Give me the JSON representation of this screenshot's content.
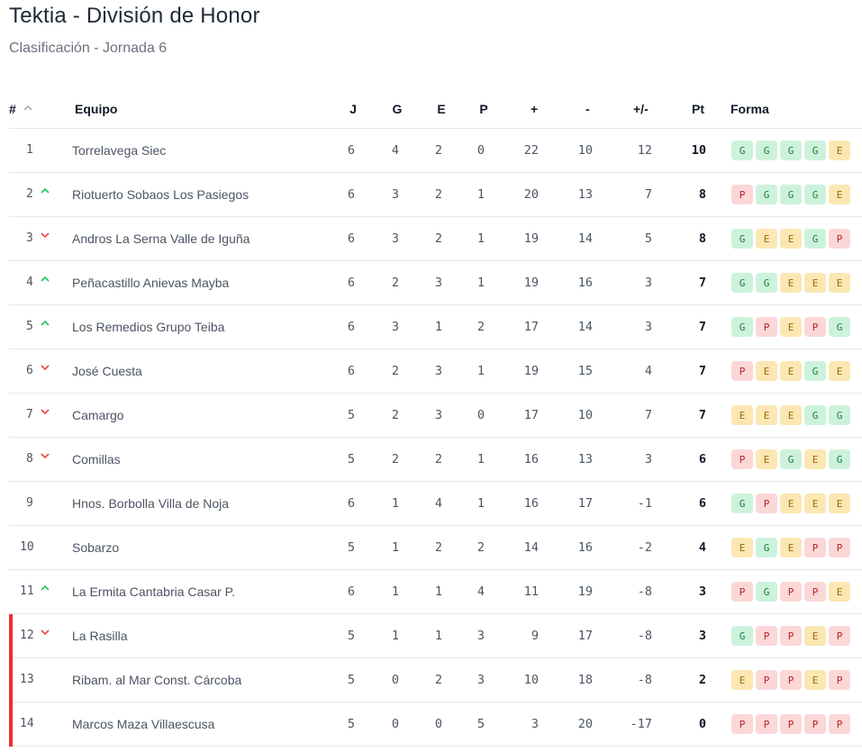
{
  "header": {
    "title": "Tektia - División de Honor",
    "subtitle": "Clasificación - Jornada 6"
  },
  "columns": {
    "pos": "#",
    "team": "Equipo",
    "j": "J",
    "g": "G",
    "e": "E",
    "p": "P",
    "plus": "+",
    "minus": "-",
    "diff": "+/-",
    "pt": "Pt",
    "form": "Forma"
  },
  "colors": {
    "win": "#cdf2dc",
    "draw": "#fbe7b3",
    "loss": "#fbd7d7",
    "up_arrow": "#22c55e",
    "down_arrow": "#ef4444",
    "relegation_marker": "#ef2b2d"
  },
  "rows": [
    {
      "pos": "1",
      "trend": "none",
      "team": "Torrelavega Siec",
      "j": "6",
      "g": "4",
      "e": "2",
      "p": "0",
      "plus": "22",
      "minus": "10",
      "diff": "12",
      "pt": "10",
      "form": [
        "G",
        "G",
        "G",
        "G",
        "E"
      ],
      "relegation": false
    },
    {
      "pos": "2",
      "trend": "up",
      "team": "Riotuerto Sobaos Los Pasiegos",
      "j": "6",
      "g": "3",
      "e": "2",
      "p": "1",
      "plus": "20",
      "minus": "13",
      "diff": "7",
      "pt": "8",
      "form": [
        "P",
        "G",
        "G",
        "G",
        "E"
      ],
      "relegation": false
    },
    {
      "pos": "3",
      "trend": "down",
      "team": "Andros La Serna Valle de Iguña",
      "j": "6",
      "g": "3",
      "e": "2",
      "p": "1",
      "plus": "19",
      "minus": "14",
      "diff": "5",
      "pt": "8",
      "form": [
        "G",
        "E",
        "E",
        "G",
        "P"
      ],
      "relegation": false
    },
    {
      "pos": "4",
      "trend": "up",
      "team": "Peñacastillo Anievas Mayba",
      "j": "6",
      "g": "2",
      "e": "3",
      "p": "1",
      "plus": "19",
      "minus": "16",
      "diff": "3",
      "pt": "7",
      "form": [
        "G",
        "G",
        "E",
        "E",
        "E"
      ],
      "relegation": false
    },
    {
      "pos": "5",
      "trend": "up",
      "team": "Los Remedios Grupo Teiba",
      "j": "6",
      "g": "3",
      "e": "1",
      "p": "2",
      "plus": "17",
      "minus": "14",
      "diff": "3",
      "pt": "7",
      "form": [
        "G",
        "P",
        "E",
        "P",
        "G"
      ],
      "relegation": false
    },
    {
      "pos": "6",
      "trend": "down",
      "team": "José Cuesta",
      "j": "6",
      "g": "2",
      "e": "3",
      "p": "1",
      "plus": "19",
      "minus": "15",
      "diff": "4",
      "pt": "7",
      "form": [
        "P",
        "E",
        "E",
        "G",
        "E"
      ],
      "relegation": false
    },
    {
      "pos": "7",
      "trend": "down",
      "team": "Camargo",
      "j": "5",
      "g": "2",
      "e": "3",
      "p": "0",
      "plus": "17",
      "minus": "10",
      "diff": "7",
      "pt": "7",
      "form": [
        "E",
        "E",
        "E",
        "G",
        "G"
      ],
      "relegation": false
    },
    {
      "pos": "8",
      "trend": "down",
      "team": "Comillas",
      "j": "5",
      "g": "2",
      "e": "2",
      "p": "1",
      "plus": "16",
      "minus": "13",
      "diff": "3",
      "pt": "6",
      "form": [
        "P",
        "E",
        "G",
        "E",
        "G"
      ],
      "relegation": false
    },
    {
      "pos": "9",
      "trend": "none",
      "team": "Hnos. Borbolla Villa de Noja",
      "j": "6",
      "g": "1",
      "e": "4",
      "p": "1",
      "plus": "16",
      "minus": "17",
      "diff": "-1",
      "pt": "6",
      "form": [
        "G",
        "P",
        "E",
        "E",
        "E"
      ],
      "relegation": false
    },
    {
      "pos": "10",
      "trend": "none",
      "team": "Sobarzo",
      "j": "5",
      "g": "1",
      "e": "2",
      "p": "2",
      "plus": "14",
      "minus": "16",
      "diff": "-2",
      "pt": "4",
      "form": [
        "E",
        "G",
        "E",
        "P",
        "P"
      ],
      "relegation": false
    },
    {
      "pos": "11",
      "trend": "up",
      "team": "La Ermita Cantabria Casar P.",
      "j": "6",
      "g": "1",
      "e": "1",
      "p": "4",
      "plus": "11",
      "minus": "19",
      "diff": "-8",
      "pt": "3",
      "form": [
        "P",
        "G",
        "P",
        "P",
        "E"
      ],
      "relegation": false
    },
    {
      "pos": "12",
      "trend": "down",
      "team": "La Rasilla",
      "j": "5",
      "g": "1",
      "e": "1",
      "p": "3",
      "plus": "9",
      "minus": "17",
      "diff": "-8",
      "pt": "3",
      "form": [
        "G",
        "P",
        "P",
        "E",
        "P"
      ],
      "relegation": true
    },
    {
      "pos": "13",
      "trend": "none",
      "team": "Ribam. al Mar Const. Cárcoba",
      "j": "5",
      "g": "0",
      "e": "2",
      "p": "3",
      "plus": "10",
      "minus": "18",
      "diff": "-8",
      "pt": "2",
      "form": [
        "E",
        "P",
        "P",
        "E",
        "P"
      ],
      "relegation": true
    },
    {
      "pos": "14",
      "trend": "none",
      "team": "Marcos Maza Villaescusa",
      "j": "5",
      "g": "0",
      "e": "0",
      "p": "5",
      "plus": "3",
      "minus": "20",
      "diff": "-17",
      "pt": "0",
      "form": [
        "P",
        "P",
        "P",
        "P",
        "P"
      ],
      "relegation": true
    }
  ]
}
